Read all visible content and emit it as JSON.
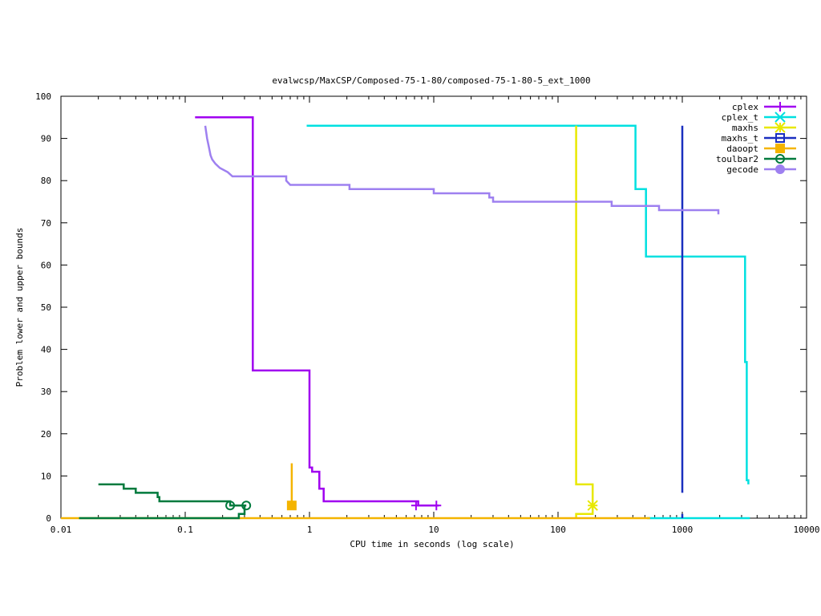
{
  "chart_data": {
    "type": "line",
    "title": "evalwcsp/MaxCSP/Composed-75-1-80/composed-75-1-80-5_ext_1000",
    "xlabel": "CPU time in seconds (log scale)",
    "ylabel": "Problem lower and upper bounds",
    "xscale": "log",
    "xlim": [
      0.01,
      10000
    ],
    "ylim": [
      0,
      100
    ],
    "xticks": [
      0.01,
      0.1,
      1,
      10,
      100,
      1000,
      10000
    ],
    "xtick_labels": [
      "0.01",
      "0.1",
      "1",
      "10",
      "100",
      "1000",
      "10000"
    ],
    "yticks": [
      0,
      10,
      20,
      30,
      40,
      50,
      60,
      70,
      80,
      90,
      100
    ],
    "ytick_labels": [
      "0",
      "10",
      "20",
      "30",
      "40",
      "50",
      "60",
      "70",
      "80",
      "90",
      "100"
    ],
    "grid": false,
    "legend_position": "top-right",
    "series": [
      {
        "name": "cplex",
        "color": "#a000f0",
        "marker": "plus",
        "points": [
          [
            0.12,
            95
          ],
          [
            0.35,
            95
          ],
          [
            0.35,
            35
          ],
          [
            1.0,
            35
          ],
          [
            1.0,
            12
          ],
          [
            1.05,
            12
          ],
          [
            1.05,
            11
          ],
          [
            1.2,
            11
          ],
          [
            1.2,
            7
          ],
          [
            1.3,
            7
          ],
          [
            1.3,
            4
          ],
          [
            7.5,
            4
          ],
          [
            7.5,
            3
          ],
          [
            11,
            3
          ]
        ],
        "marker_points": [
          [
            7.2,
            3
          ],
          [
            10.5,
            3
          ]
        ]
      },
      {
        "name": "cplex_t",
        "color": "#00e0e0",
        "marker": "star",
        "points": [
          [
            0.95,
            93
          ],
          [
            420,
            93
          ],
          [
            420,
            78
          ],
          [
            510,
            78
          ],
          [
            510,
            62
          ],
          [
            3200,
            62
          ],
          [
            3200,
            37
          ],
          [
            3300,
            37
          ],
          [
            3300,
            9
          ],
          [
            3400,
            9
          ],
          [
            3400,
            8
          ]
        ],
        "lower_points": [
          [
            520,
            0
          ],
          [
            3500,
            0
          ]
        ]
      },
      {
        "name": "maxhs",
        "color": "#e8e800",
        "marker": "asterisk",
        "points": [
          [
            140,
            93
          ],
          [
            140,
            8
          ],
          [
            190,
            8
          ],
          [
            190,
            3
          ]
        ],
        "lower_points": [
          [
            140,
            0
          ],
          [
            140,
            1
          ],
          [
            190,
            1
          ],
          [
            190,
            3
          ]
        ],
        "marker_points": [
          [
            190,
            3
          ]
        ]
      },
      {
        "name": "maxhs_t",
        "color": "#1a2fbf",
        "marker": "square",
        "points": [
          [
            1000,
            93
          ],
          [
            1000,
            6
          ]
        ],
        "lower_points": [
          [
            1000,
            0
          ],
          [
            1000,
            1
          ]
        ]
      },
      {
        "name": "daoopt",
        "color": "#f4b400",
        "marker": "filled-square",
        "points": [
          [
            0.72,
            13
          ],
          [
            0.72,
            3
          ]
        ],
        "lower_points": [
          [
            0.01,
            0
          ],
          [
            550,
            0
          ]
        ],
        "marker_points": [
          [
            0.72,
            3
          ]
        ]
      },
      {
        "name": "toulbar2",
        "color": "#007a3d",
        "marker": "circle",
        "points": [
          [
            0.02,
            8
          ],
          [
            0.032,
            8
          ],
          [
            0.032,
            7
          ],
          [
            0.04,
            7
          ],
          [
            0.04,
            6
          ],
          [
            0.06,
            6
          ],
          [
            0.06,
            5
          ],
          [
            0.062,
            5
          ],
          [
            0.062,
            4
          ],
          [
            0.23,
            4
          ],
          [
            0.23,
            3
          ],
          [
            0.31,
            3
          ]
        ],
        "lower_points": [
          [
            0.014,
            0
          ],
          [
            0.27,
            0
          ],
          [
            0.27,
            1
          ],
          [
            0.3,
            1
          ],
          [
            0.3,
            3
          ]
        ],
        "marker_points": [
          [
            0.23,
            3
          ],
          [
            0.31,
            3
          ]
        ]
      },
      {
        "name": "gecode",
        "color": "#9e80f0",
        "marker": "filled-circle",
        "points": [
          [
            0.145,
            93
          ],
          [
            0.15,
            90
          ],
          [
            0.155,
            88
          ],
          [
            0.16,
            86
          ],
          [
            0.165,
            85
          ],
          [
            0.175,
            84
          ],
          [
            0.19,
            83
          ],
          [
            0.22,
            82
          ],
          [
            0.24,
            81
          ],
          [
            0.65,
            81
          ],
          [
            0.65,
            80
          ],
          [
            0.7,
            79
          ],
          [
            2.1,
            79
          ],
          [
            2.1,
            78
          ],
          [
            10,
            78
          ],
          [
            10,
            77
          ],
          [
            28,
            77
          ],
          [
            28,
            76
          ],
          [
            30,
            76
          ],
          [
            30,
            75
          ],
          [
            270,
            75
          ],
          [
            270,
            74
          ],
          [
            650,
            74
          ],
          [
            650,
            73
          ],
          [
            1950,
            73
          ],
          [
            1950,
            72
          ]
        ]
      }
    ]
  }
}
